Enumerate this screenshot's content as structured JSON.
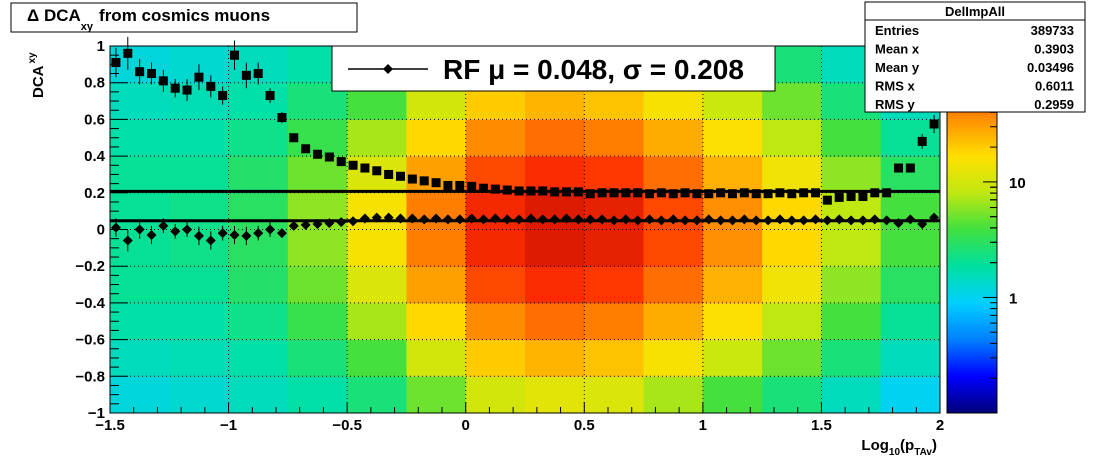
{
  "chart_data": {
    "type": "heatmap",
    "title": {
      "main": "Δ DCA",
      "sub": "xy",
      "rest": "from cosmics muons"
    },
    "y_label": {
      "main": "DCA",
      "sub": "xy"
    },
    "x_label": {
      "a": "Log",
      "b": "10",
      "c": "(p",
      "d": "TAv",
      "e": ")"
    },
    "xlim": [
      -1.5,
      2
    ],
    "ylim": [
      -1,
      1
    ],
    "xticks": [
      {
        "value": -1.5,
        "label": "−1.5"
      },
      {
        "value": -1,
        "label": "−1"
      },
      {
        "value": -0.5,
        "label": "−0.5"
      },
      0,
      0.5,
      1,
      1.5,
      2
    ],
    "yticks": [
      {
        "value": -1,
        "label": "−1"
      },
      {
        "value": -0.8,
        "label": "−0.8"
      },
      {
        "value": -0.6,
        "label": "−0.6"
      },
      {
        "value": -0.4,
        "label": "−0.4"
      },
      {
        "value": -0.2,
        "label": "−0.2"
      },
      0,
      0.2,
      0.4,
      0.6,
      0.8,
      1
    ],
    "grid": true,
    "log_z": true,
    "zlim": [
      0.1,
      150
    ],
    "zticks": [
      1,
      10
    ],
    "palette": [
      "#00007a",
      "#0000ff",
      "#0080ff",
      "#00d0ff",
      "#00e0a0",
      "#40e040",
      "#c0e810",
      "#ffe000",
      "#ff9000",
      "#ff3000",
      "#b00000"
    ],
    "x_bins": [
      -1.5,
      -1.25,
      -1,
      -0.75,
      -0.5,
      -0.25,
      0,
      0.25,
      0.5,
      0.75,
      1,
      1.25,
      1.5,
      1.75,
      2
    ],
    "y_bins": [
      -1,
      -0.8,
      -0.6,
      -0.4,
      -0.2,
      0,
      0.2,
      0.4,
      0.6,
      0.8,
      1
    ],
    "z": [
      [
        1.2,
        1.5,
        1.8,
        2,
        2,
        2,
        2,
        1.8,
        1.5,
        1.2
      ],
      [
        1.3,
        1.6,
        1.8,
        2,
        2.2,
        2.2,
        2,
        1.8,
        1.6,
        1.3
      ],
      [
        1.5,
        1.8,
        2.2,
        2.8,
        3,
        3,
        2.8,
        2.2,
        1.8,
        1.5
      ],
      [
        1.8,
        2.5,
        3.5,
        5,
        6,
        6,
        5,
        3.5,
        2.5,
        1.8
      ],
      [
        2.5,
        4,
        7,
        11,
        15,
        15,
        11,
        7,
        4,
        2.5
      ],
      [
        5,
        10,
        18,
        30,
        40,
        40,
        30,
        18,
        10,
        5
      ],
      [
        10,
        20,
        36,
        60,
        80,
        80,
        60,
        36,
        20,
        10
      ],
      [
        12,
        25,
        45,
        75,
        100,
        100,
        75,
        45,
        25,
        12
      ],
      [
        11,
        22,
        40,
        68,
        90,
        90,
        68,
        40,
        22,
        11
      ],
      [
        7,
        15,
        27,
        45,
        60,
        60,
        45,
        27,
        15,
        7
      ],
      [
        4,
        9,
        16,
        26,
        35,
        35,
        26,
        16,
        9,
        4
      ],
      [
        2.5,
        5,
        8,
        14,
        18,
        18,
        14,
        8,
        5,
        2.5
      ],
      [
        1.5,
        2.5,
        4,
        6,
        8,
        8,
        6,
        4,
        2.5,
        1.5
      ],
      [
        1,
        1.5,
        2,
        3,
        4,
        4,
        3,
        2,
        1.5,
        1
      ]
    ],
    "x": [
      -1.475,
      -1.425,
      -1.375,
      -1.325,
      -1.275,
      -1.225,
      -1.175,
      -1.125,
      -1.075,
      -1.025,
      -0.975,
      -0.925,
      -0.875,
      -0.825,
      -0.775,
      -0.725,
      -0.675,
      -0.625,
      -0.575,
      -0.525,
      -0.475,
      -0.425,
      -0.375,
      -0.325,
      -0.275,
      -0.225,
      -0.175,
      -0.125,
      -0.075,
      -0.025,
      0.025,
      0.075,
      0.125,
      0.175,
      0.225,
      0.275,
      0.325,
      0.375,
      0.425,
      0.475,
      0.525,
      0.575,
      0.625,
      0.675,
      0.725,
      0.775,
      0.825,
      0.875,
      0.925,
      0.975,
      1.025,
      1.075,
      1.125,
      1.175,
      1.225,
      1.275,
      1.325,
      1.375,
      1.425,
      1.475,
      1.525,
      1.575,
      1.625,
      1.675,
      1.725,
      1.775,
      1.825,
      1.875,
      1.925,
      1.975
    ],
    "series": [
      {
        "marker": "square",
        "color": "#000000",
        "values": [
          0.91,
          0.96,
          0.86,
          0.85,
          0.81,
          0.77,
          0.76,
          0.83,
          0.78,
          0.73,
          0.95,
          0.84,
          0.85,
          0.73,
          0.61,
          0.5,
          0.44,
          0.41,
          0.395,
          0.37,
          0.35,
          0.335,
          0.32,
          0.3,
          0.29,
          0.275,
          0.265,
          0.255,
          0.24,
          0.24,
          0.235,
          0.225,
          0.22,
          0.215,
          0.21,
          0.21,
          0.21,
          0.205,
          0.205,
          0.205,
          0.195,
          0.2,
          0.2,
          0.2,
          0.2,
          0.195,
          0.2,
          0.195,
          0.2,
          0.195,
          0.195,
          0.2,
          0.195,
          0.2,
          0.195,
          0.195,
          0.2,
          0.195,
          0.2,
          0.2,
          0.16,
          0.175,
          0.18,
          0.18,
          0.2,
          0.2,
          0.335,
          0.335,
          0.48,
          0.575
        ],
        "errors": [
          0.08,
          0.09,
          0.07,
          0.06,
          0.06,
          0.05,
          0.06,
          0.07,
          0.06,
          0.05,
          0.08,
          0.07,
          0.06,
          0.04,
          0.03,
          0.015,
          0.005,
          0.005,
          0.005,
          0.005,
          0.005,
          0.005,
          0.005,
          0.005,
          0.005,
          0.005,
          0.005,
          0.005,
          0.005,
          0.005,
          0.005,
          0.005,
          0.005,
          0.005,
          0.005,
          0.005,
          0.005,
          0.005,
          0.005,
          0.005,
          0.005,
          0.005,
          0.005,
          0.005,
          0.005,
          0.005,
          0.005,
          0.005,
          0.005,
          0.005,
          0.005,
          0.005,
          0.005,
          0.005,
          0.005,
          0.005,
          0.005,
          0.005,
          0.005,
          0.005,
          0.005,
          0.005,
          0.005,
          0.005,
          0.005,
          0.005,
          0.02,
          0.02,
          0.04,
          0.05
        ]
      },
      {
        "marker": "diamond",
        "color": "#000000",
        "values": [
          0.01,
          -0.06,
          0.0,
          -0.03,
          0.02,
          -0.01,
          0.0,
          -0.035,
          -0.06,
          -0.02,
          -0.03,
          -0.035,
          -0.02,
          0.0,
          -0.02,
          0.02,
          0.025,
          0.03,
          0.035,
          0.04,
          0.045,
          0.06,
          0.065,
          0.065,
          0.06,
          0.06,
          0.055,
          0.06,
          0.055,
          0.055,
          0.06,
          0.055,
          0.06,
          0.055,
          0.055,
          0.06,
          0.055,
          0.055,
          0.06,
          0.055,
          0.055,
          0.055,
          0.05,
          0.055,
          0.05,
          0.055,
          0.05,
          0.055,
          0.05,
          0.05,
          0.055,
          0.05,
          0.05,
          0.055,
          0.05,
          0.05,
          0.055,
          0.05,
          0.05,
          0.055,
          0.05,
          0.055,
          0.05,
          0.05,
          0.055,
          0.05,
          0.035,
          0.055,
          0.03,
          0.065
        ],
        "errors": [
          0.05,
          0.06,
          0.05,
          0.05,
          0.04,
          0.04,
          0.04,
          0.05,
          0.05,
          0.04,
          0.05,
          0.05,
          0.04,
          0.04,
          0.02,
          0.015,
          0.005,
          0.005,
          0.005,
          0.005,
          0.005,
          0.005,
          0.005,
          0.005,
          0.005,
          0.005,
          0.005,
          0.005,
          0.005,
          0.005,
          0.005,
          0.005,
          0.005,
          0.005,
          0.005,
          0.005,
          0.005,
          0.005,
          0.005,
          0.005,
          0.005,
          0.005,
          0.005,
          0.005,
          0.005,
          0.005,
          0.005,
          0.005,
          0.005,
          0.005,
          0.005,
          0.005,
          0.005,
          0.005,
          0.005,
          0.005,
          0.005,
          0.005,
          0.005,
          0.005,
          0.005,
          0.005,
          0.005,
          0.005,
          0.005,
          0.005,
          0.015,
          0.015,
          0.02,
          0.025
        ]
      }
    ],
    "fit_lines": [
      0.048,
      0.208
    ],
    "legend_label": "RF μ =  0.048, σ =   0.208",
    "stats": {
      "title": "DelImpAll",
      "rows": [
        {
          "label": "Entries",
          "value": 389733
        },
        {
          "label": "Mean x",
          "value": 0.3903
        },
        {
          "label": "Mean y",
          "value": 0.03496
        },
        {
          "label": "RMS x",
          "value": 0.6011
        },
        {
          "label": "RMS y",
          "value": 0.2959
        }
      ]
    }
  }
}
